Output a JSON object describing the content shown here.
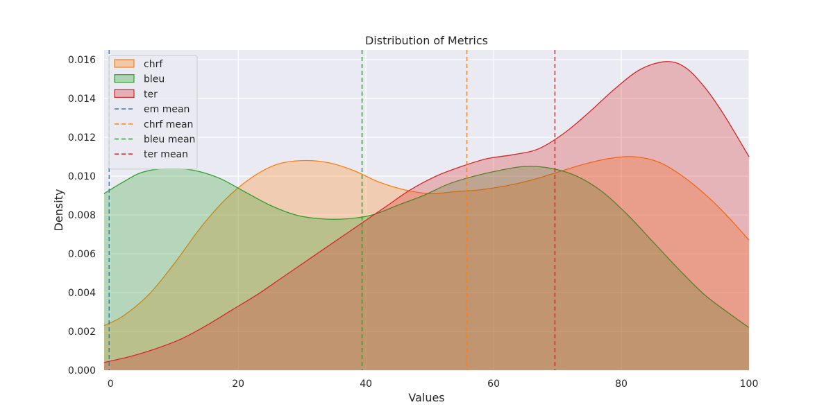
{
  "chart_data": {
    "type": "area",
    "title": "Distribution of Metrics",
    "xlabel": "Values",
    "ylabel": "Density",
    "xlim": [
      -1,
      100
    ],
    "ylim": [
      0,
      0.0165
    ],
    "x_ticks": [
      0,
      20,
      40,
      60,
      80,
      100
    ],
    "x_tick_labels": [
      "0",
      "20",
      "40",
      "60",
      "80",
      "100"
    ],
    "y_ticks": [
      0,
      0.002,
      0.004,
      0.006,
      0.008,
      0.01,
      0.012,
      0.014,
      0.016
    ],
    "y_tick_labels": [
      "0.000",
      "0.002",
      "0.004",
      "0.006",
      "0.008",
      "0.010",
      "0.012",
      "0.014",
      "0.016"
    ],
    "grid": true,
    "legend_placement": "top-left",
    "series": [
      {
        "name": "chrf",
        "kind": "density",
        "color": "#ff7f0e",
        "points": [
          [
            -1,
            0.0023
          ],
          [
            2,
            0.0028
          ],
          [
            6,
            0.0039
          ],
          [
            10,
            0.0055
          ],
          [
            14,
            0.0073
          ],
          [
            18,
            0.0088
          ],
          [
            22,
            0.0099
          ],
          [
            26,
            0.0106
          ],
          [
            30,
            0.0108
          ],
          [
            34,
            0.0107
          ],
          [
            38,
            0.0103
          ],
          [
            42,
            0.0097
          ],
          [
            46,
            0.0093
          ],
          [
            50,
            0.0091
          ],
          [
            54,
            0.0092
          ],
          [
            58,
            0.0093
          ],
          [
            62,
            0.0095
          ],
          [
            66,
            0.0098
          ],
          [
            70,
            0.0102
          ],
          [
            74,
            0.0106
          ],
          [
            78,
            0.0109
          ],
          [
            82,
            0.011
          ],
          [
            86,
            0.0107
          ],
          [
            90,
            0.0099
          ],
          [
            94,
            0.0088
          ],
          [
            97,
            0.0078
          ],
          [
            100,
            0.0067
          ]
        ]
      },
      {
        "name": "bleu",
        "kind": "density",
        "color": "#2ca02c",
        "points": [
          [
            -1,
            0.0091
          ],
          [
            2,
            0.0097
          ],
          [
            5,
            0.0102
          ],
          [
            9,
            0.0104
          ],
          [
            13,
            0.0103
          ],
          [
            17,
            0.0099
          ],
          [
            21,
            0.0092
          ],
          [
            25,
            0.0085
          ],
          [
            29,
            0.008
          ],
          [
            33,
            0.0078
          ],
          [
            37,
            0.0078
          ],
          [
            41,
            0.008
          ],
          [
            45,
            0.0085
          ],
          [
            49,
            0.009
          ],
          [
            53,
            0.0096
          ],
          [
            57,
            0.01
          ],
          [
            61,
            0.0103
          ],
          [
            65,
            0.0105
          ],
          [
            69,
            0.0104
          ],
          [
            73,
            0.01
          ],
          [
            77,
            0.0092
          ],
          [
            81,
            0.008
          ],
          [
            85,
            0.0066
          ],
          [
            89,
            0.0052
          ],
          [
            93,
            0.0039
          ],
          [
            97,
            0.0029
          ],
          [
            100,
            0.0022
          ]
        ]
      },
      {
        "name": "ter",
        "kind": "density",
        "color": "#d62728",
        "points": [
          [
            -1,
            0.0004
          ],
          [
            3,
            0.0007
          ],
          [
            7,
            0.0011
          ],
          [
            11,
            0.0016
          ],
          [
            15,
            0.0023
          ],
          [
            19,
            0.0031
          ],
          [
            23,
            0.0039
          ],
          [
            27,
            0.0048
          ],
          [
            31,
            0.0057
          ],
          [
            35,
            0.0066
          ],
          [
            39,
            0.0075
          ],
          [
            43,
            0.0084
          ],
          [
            47,
            0.0093
          ],
          [
            51,
            0.01
          ],
          [
            55,
            0.0105
          ],
          [
            59,
            0.0109
          ],
          [
            63,
            0.0111
          ],
          [
            67,
            0.0114
          ],
          [
            71,
            0.0122
          ],
          [
            75,
            0.0133
          ],
          [
            79,
            0.0145
          ],
          [
            83,
            0.0155
          ],
          [
            87,
            0.0159
          ],
          [
            90,
            0.0156
          ],
          [
            93,
            0.0146
          ],
          [
            96,
            0.0132
          ],
          [
            100,
            0.011
          ]
        ]
      }
    ],
    "mean_lines": [
      {
        "name": "em mean",
        "x": -0.2,
        "color": "#1f77b4"
      },
      {
        "name": "chrf mean",
        "x": 55.8,
        "color": "#ff7f0e"
      },
      {
        "name": "bleu mean",
        "x": 39.4,
        "color": "#2ca02c"
      },
      {
        "name": "ter mean",
        "x": 69.6,
        "color": "#d62728"
      }
    ],
    "legend": [
      {
        "label": "chrf",
        "kind": "patch",
        "color": "#ff7f0e"
      },
      {
        "label": "bleu",
        "kind": "patch",
        "color": "#2ca02c"
      },
      {
        "label": "ter",
        "kind": "patch",
        "color": "#d62728"
      },
      {
        "label": "em mean",
        "kind": "dashed-line",
        "color": "#1f77b4"
      },
      {
        "label": "chrf mean",
        "kind": "dashed-line",
        "color": "#ff7f0e"
      },
      {
        "label": "bleu mean",
        "kind": "dashed-line",
        "color": "#2ca02c"
      },
      {
        "label": "ter mean",
        "kind": "dashed-line",
        "color": "#d62728"
      }
    ],
    "plot_background": "#eaeaf2",
    "grid_color": "#ffffff"
  }
}
